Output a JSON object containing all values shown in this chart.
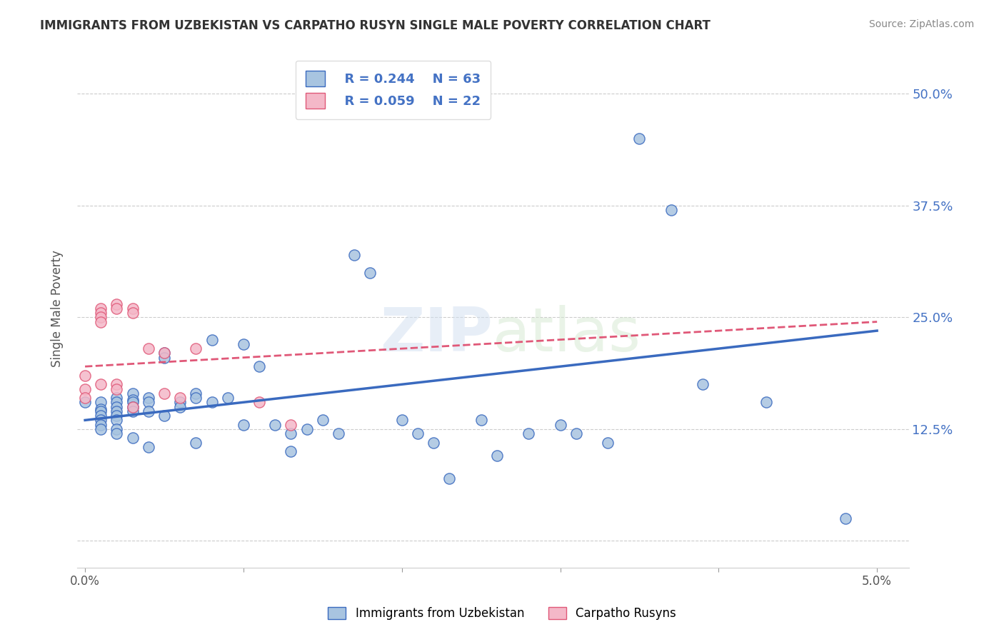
{
  "title": "IMMIGRANTS FROM UZBEKISTAN VS CARPATHO RUSYN SINGLE MALE POVERTY CORRELATION CHART",
  "source": "Source: ZipAtlas.com",
  "xlabel_bottom": "",
  "ylabel": "Single Male Poverty",
  "x_ticks": [
    0.0,
    0.01,
    0.02,
    0.03,
    0.04,
    0.05
  ],
  "x_tick_labels": [
    "0.0%",
    "",
    "",
    "",
    "",
    "5.0%"
  ],
  "y_ticks": [
    0.0,
    0.125,
    0.25,
    0.375,
    0.5
  ],
  "y_tick_labels": [
    "",
    "12.5%",
    "25.0%",
    "37.5%",
    "50.0%"
  ],
  "legend_r_blue": "R = 0.244",
  "legend_n_blue": "N = 63",
  "legend_r_pink": "R = 0.059",
  "legend_n_pink": "N = 22",
  "legend_label_blue": "Immigrants from Uzbekistan",
  "legend_label_pink": "Carpatho Rusyns",
  "blue_color": "#a8c4e0",
  "blue_line_color": "#3a6abf",
  "pink_color": "#f4b8c8",
  "pink_line_color": "#e05878",
  "watermark": "ZIPatlas",
  "blue_x": [
    0.0,
    0.001,
    0.001,
    0.001,
    0.001,
    0.001,
    0.001,
    0.001,
    0.002,
    0.002,
    0.002,
    0.002,
    0.002,
    0.002,
    0.002,
    0.002,
    0.003,
    0.003,
    0.003,
    0.003,
    0.003,
    0.003,
    0.004,
    0.004,
    0.004,
    0.004,
    0.005,
    0.005,
    0.005,
    0.006,
    0.006,
    0.007,
    0.007,
    0.007,
    0.008,
    0.008,
    0.009,
    0.01,
    0.01,
    0.011,
    0.012,
    0.013,
    0.013,
    0.014,
    0.015,
    0.016,
    0.017,
    0.018,
    0.02,
    0.021,
    0.022,
    0.023,
    0.025,
    0.026,
    0.028,
    0.03,
    0.031,
    0.033,
    0.035,
    0.037,
    0.039,
    0.043,
    0.048
  ],
  "blue_y": [
    0.155,
    0.155,
    0.147,
    0.145,
    0.14,
    0.135,
    0.13,
    0.125,
    0.16,
    0.155,
    0.15,
    0.145,
    0.14,
    0.135,
    0.125,
    0.12,
    0.165,
    0.158,
    0.155,
    0.15,
    0.145,
    0.115,
    0.16,
    0.155,
    0.145,
    0.105,
    0.21,
    0.205,
    0.14,
    0.155,
    0.15,
    0.165,
    0.16,
    0.11,
    0.225,
    0.155,
    0.16,
    0.22,
    0.13,
    0.195,
    0.13,
    0.12,
    0.1,
    0.125,
    0.135,
    0.12,
    0.32,
    0.3,
    0.135,
    0.12,
    0.11,
    0.07,
    0.135,
    0.095,
    0.12,
    0.13,
    0.12,
    0.11,
    0.45,
    0.37,
    0.175,
    0.155,
    0.025
  ],
  "pink_x": [
    0.0,
    0.0,
    0.0,
    0.001,
    0.001,
    0.001,
    0.001,
    0.001,
    0.002,
    0.002,
    0.002,
    0.002,
    0.003,
    0.003,
    0.003,
    0.004,
    0.005,
    0.005,
    0.006,
    0.007,
    0.011,
    0.013
  ],
  "pink_y": [
    0.185,
    0.17,
    0.16,
    0.26,
    0.255,
    0.25,
    0.245,
    0.175,
    0.265,
    0.26,
    0.175,
    0.17,
    0.26,
    0.255,
    0.15,
    0.215,
    0.21,
    0.165,
    0.16,
    0.215,
    0.155,
    0.13
  ],
  "blue_trend_x": [
    0.0,
    0.05
  ],
  "blue_trend_y": [
    0.135,
    0.235
  ],
  "pink_trend_x": [
    0.0,
    0.05
  ],
  "pink_trend_y": [
    0.195,
    0.245
  ],
  "xlim": [
    -0.0005,
    0.052
  ],
  "ylim": [
    -0.03,
    0.55
  ],
  "grid_color": "#cccccc",
  "title_color": "#333333",
  "tick_color_right": "#4472c4",
  "background_color": "#ffffff"
}
